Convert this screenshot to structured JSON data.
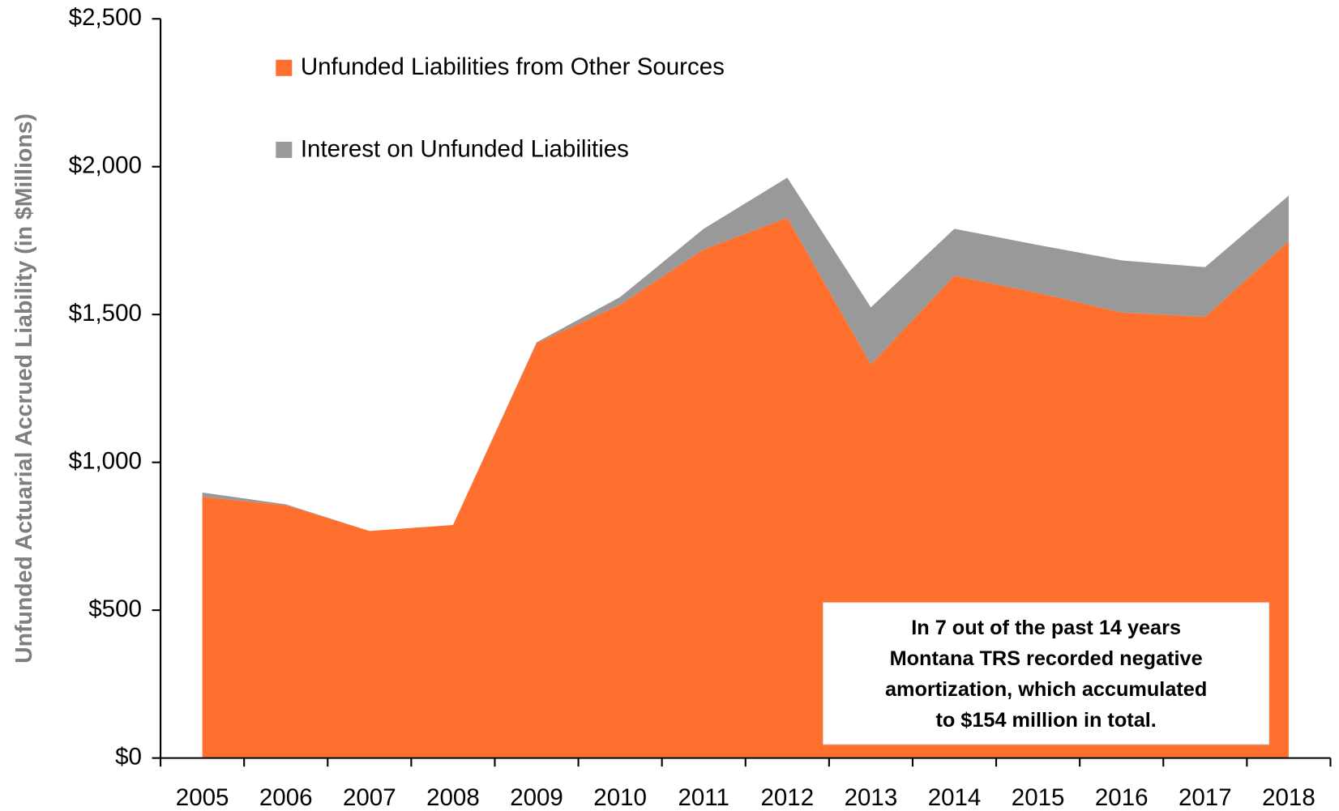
{
  "chart_data": {
    "type": "stacked_area",
    "y_label": "Unfunded Actuarial Accrued Liability (in $Millions)",
    "categories": [
      "2005",
      "2006",
      "2007",
      "2008",
      "2009",
      "2010",
      "2011",
      "2012",
      "2013",
      "2014",
      "2015",
      "2016",
      "2017",
      "2018"
    ],
    "series": [
      {
        "name": "Unfunded Liabilities from Other Sources",
        "color": "#ff6f2e",
        "values": [
          883,
          855,
          768,
          788,
          1403,
          1533,
          1720,
          1827,
          1331,
          1631,
          1573,
          1507,
          1492,
          1747
        ]
      },
      {
        "name": "Interest on Unfunded Liabilities",
        "color": "#999999",
        "values": [
          15,
          3,
          0,
          0,
          3,
          26,
          70,
          136,
          193,
          159,
          162,
          176,
          168,
          155
        ]
      }
    ],
    "ylim": [
      0,
      2500
    ],
    "yticks": [
      {
        "value": 0,
        "label": "$0"
      },
      {
        "value": 500,
        "label": "$500"
      },
      {
        "value": 1000,
        "label": "$1,000"
      },
      {
        "value": 1500,
        "label": "$1,500"
      },
      {
        "value": 2000,
        "label": "$2,000"
      },
      {
        "value": 2500,
        "label": "$2,500"
      }
    ],
    "annotation": [
      "In 7 out of the past 14 years",
      "Montana TRS recorded negative",
      "amortization, which accumulated",
      "to $154 million in total."
    ]
  }
}
